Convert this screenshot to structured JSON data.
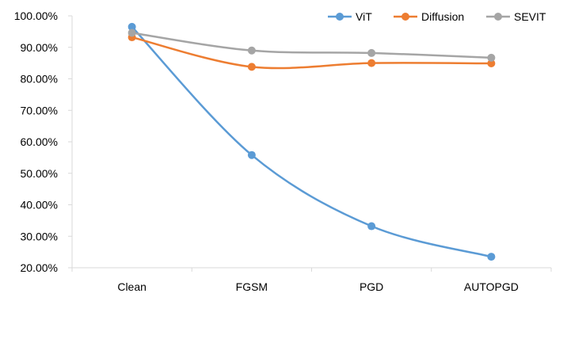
{
  "chart_data": {
    "type": "line",
    "title": "",
    "xlabel": "",
    "ylabel": "",
    "categories": [
      "Clean",
      "FGSM",
      "PGD",
      "AUTOPGD"
    ],
    "ylim": [
      0.2,
      1.0
    ],
    "yticks": [
      {
        "value": 0.2,
        "label": "20.00%"
      },
      {
        "value": 0.3,
        "label": "30.00%"
      },
      {
        "value": 0.4,
        "label": "40.00%"
      },
      {
        "value": 0.5,
        "label": "50.00%"
      },
      {
        "value": 0.6,
        "label": "60.00%"
      },
      {
        "value": 0.7,
        "label": "70.00%"
      },
      {
        "value": 0.8,
        "label": "80.00%"
      },
      {
        "value": 0.9,
        "label": "90.00%"
      },
      {
        "value": 1.0,
        "label": "100.00%"
      }
    ],
    "grid": false,
    "legend_position": "top-right",
    "series": [
      {
        "name": "ViT",
        "color": "#5B9BD5",
        "values": [
          0.965,
          0.558,
          0.332,
          0.235
        ]
      },
      {
        "name": "Diffusion",
        "color": "#ED7D31",
        "values": [
          0.932,
          0.838,
          0.85,
          0.849
        ]
      },
      {
        "name": "SEVIT",
        "color": "#A5A5A5",
        "values": [
          0.946,
          0.89,
          0.882,
          0.867
        ]
      }
    ]
  }
}
